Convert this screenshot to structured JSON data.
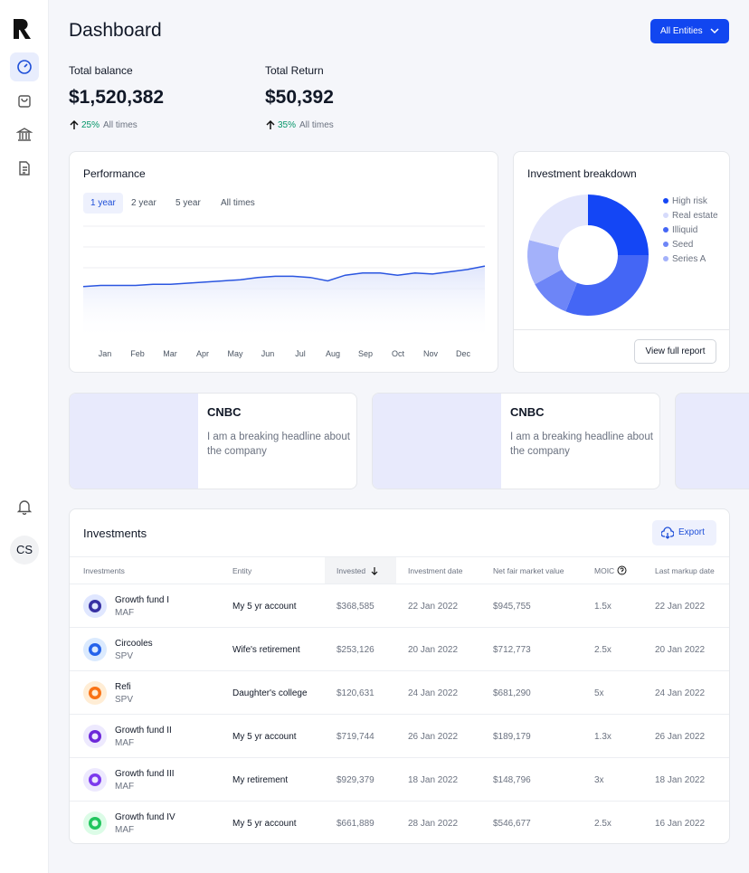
{
  "sidebar": {
    "avatar": "CS"
  },
  "header": {
    "title": "Dashboard",
    "filter": "All Entities"
  },
  "stats": [
    {
      "label": "Total balance",
      "value": "$1,520,382",
      "change": "25%",
      "period": "All times"
    },
    {
      "label": "Total Return",
      "value": "$50,392",
      "change": "35%",
      "period": "All times"
    }
  ],
  "performance": {
    "title": "Performance",
    "tabs": [
      "1 year",
      "2 year",
      "5 year",
      "All times"
    ],
    "chart": {
      "type": "line",
      "months": [
        "Jan",
        "Feb",
        "Mar",
        "Apr",
        "May",
        "Jun",
        "Jul",
        "Aug",
        "Sep",
        "Oct",
        "Nov",
        "Dec"
      ],
      "values": [
        47,
        48,
        48,
        48,
        49,
        49,
        50,
        51,
        52,
        53,
        55,
        56,
        56,
        55,
        52,
        57,
        59,
        59,
        57,
        59,
        58,
        60,
        62,
        65
      ],
      "ylim": [
        0,
        100
      ],
      "color": "#2a55e0"
    }
  },
  "breakdown": {
    "title": "Investment breakdown",
    "button": "View full report",
    "chart": {
      "type": "pie",
      "categories": [
        "High risk",
        "Real estate",
        "Illiquid",
        "Seed",
        "Series A"
      ],
      "values": [
        25,
        21,
        31,
        11,
        12
      ],
      "colors": [
        "#1446f5",
        "#e3e6fc",
        "#4466f5",
        "#6d85f7",
        "#a3b1fa"
      ]
    }
  },
  "news": [
    {
      "source": "CNBC",
      "headline": "I am a breaking headline about the company"
    },
    {
      "source": "CNBC",
      "headline": "I am a breaking headline about the company"
    }
  ],
  "investments": {
    "title": "Investments",
    "export": "Export",
    "columns": [
      "Investments",
      "Entity",
      "Invested",
      "Investment date",
      "Net fair market value",
      "MOIC",
      "Last markup date"
    ],
    "rows": [
      [
        "Growth fund I",
        "MAF",
        "My 5 yr account",
        "$368,585",
        "22 Jan 2022",
        "$945,755",
        "1.5x",
        "22 Jan 2022"
      ],
      [
        "Circooles",
        "SPV",
        "Wife's retirement",
        "$253,126",
        "20 Jan 2022",
        "$712,773",
        "2.5x",
        "20 Jan 2022"
      ],
      [
        "Refi",
        "SPV",
        "Daughter's college",
        "$120,631",
        "24 Jan 2022",
        "$681,290",
        "5x",
        "24 Jan 2022"
      ],
      [
        "Growth fund II",
        "MAF",
        "My 5 yr account",
        "$719,744",
        "26 Jan 2022",
        "$189,179",
        "1.3x",
        "26 Jan 2022"
      ],
      [
        "Growth fund III",
        "MAF",
        "My retirement",
        "$929,379",
        "18 Jan 2022",
        "$148,796",
        "3x",
        "18 Jan 2022"
      ],
      [
        "Growth fund IV",
        "MAF",
        "My 5 yr account",
        "$661,889",
        "28 Jan 2022",
        "$546,677",
        "2.5x",
        "16 Jan 2022"
      ]
    ]
  }
}
